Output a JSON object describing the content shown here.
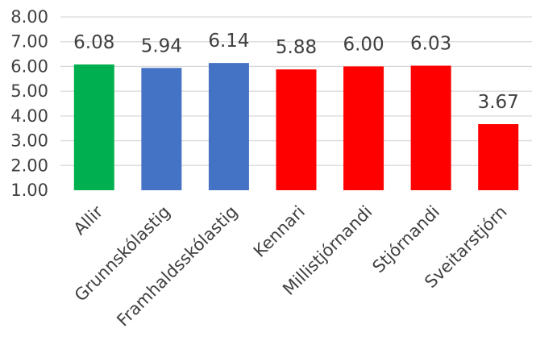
{
  "chart_data": {
    "type": "bar",
    "categories": [
      "Allir",
      "Grunnskólastig",
      "Framhaldsskólastig",
      "Kennari",
      "Millistjórnandi",
      "Stjórnandi",
      "Sveitarstjórn"
    ],
    "values": [
      6.08,
      5.94,
      6.14,
      5.88,
      6.0,
      6.03,
      3.67
    ],
    "value_labels": [
      "6.08",
      "5.94",
      "6.14",
      "5.88",
      "6.00",
      "6.03",
      "3.67"
    ],
    "bar_colors": [
      "#00b050",
      "#4472c4",
      "#4472c4",
      "#ff0000",
      "#ff0000",
      "#ff0000",
      "#ff0000"
    ],
    "ylim": [
      1,
      8
    ],
    "yticks": [
      "1.00",
      "2.00",
      "3.00",
      "4.00",
      "5.00",
      "6.00",
      "7.00",
      "8.00"
    ],
    "grid": true,
    "title": "",
    "xlabel": "",
    "ylabel": ""
  }
}
